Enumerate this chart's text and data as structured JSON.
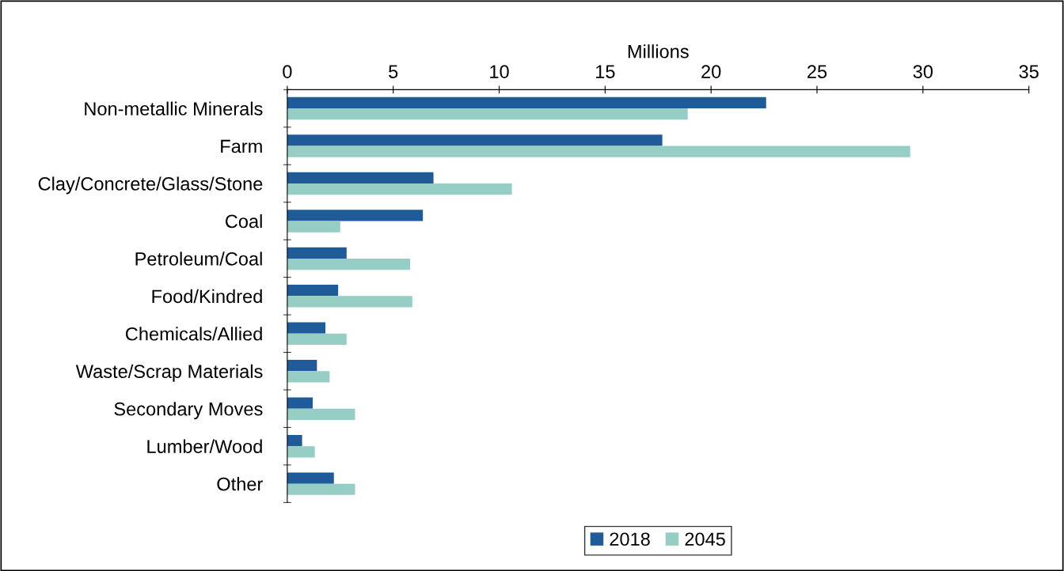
{
  "chart_data": {
    "type": "bar",
    "orientation": "horizontal",
    "xlabel": "Millions",
    "categories": [
      "Non-metallic Minerals",
      "Farm",
      "Clay/Concrete/Glass/Stone",
      "Coal",
      "Petroleum/Coal",
      "Food/Kindred",
      "Chemicals/Allied",
      "Waste/Scrap Materials",
      "Secondary Moves",
      "Lumber/Wood",
      "Other"
    ],
    "series": [
      {
        "name": "2018",
        "color": "#1f5b99",
        "values": [
          22.6,
          17.7,
          6.9,
          6.4,
          2.8,
          2.4,
          1.8,
          1.4,
          1.2,
          0.7,
          2.2
        ]
      },
      {
        "name": "2045",
        "color": "#96cdc4",
        "values": [
          18.9,
          29.4,
          10.6,
          2.5,
          5.8,
          5.9,
          2.8,
          2.0,
          3.2,
          1.3,
          3.2
        ]
      }
    ],
    "xlim": [
      0,
      35
    ],
    "xticks": [
      0,
      5,
      10,
      15,
      20,
      25,
      30,
      35
    ],
    "grid": false,
    "legend": "bottom"
  }
}
